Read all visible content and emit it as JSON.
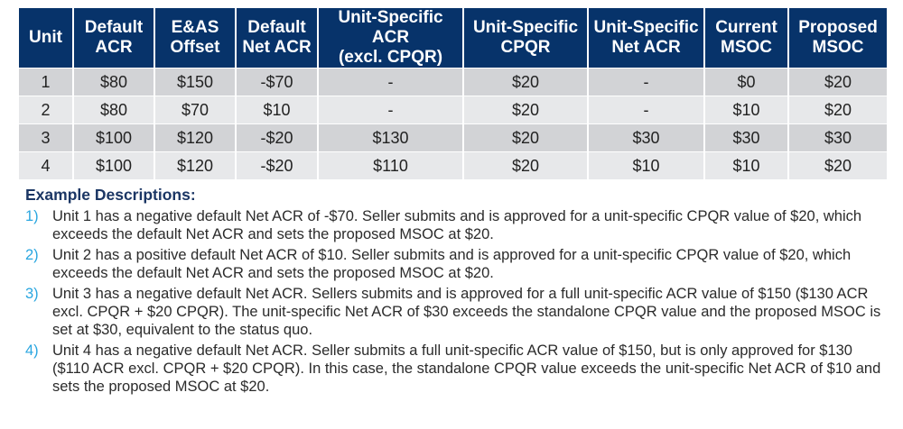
{
  "table": {
    "headers": [
      [
        "Unit"
      ],
      [
        "Default",
        "ACR"
      ],
      [
        "E&AS",
        "Offset"
      ],
      [
        "Default",
        "Net ACR"
      ],
      [
        "Unit-Specific ACR",
        "(excl. CPQR)"
      ],
      [
        "Unit-Specific",
        "CPQR"
      ],
      [
        "Unit-Specific",
        "Net ACR"
      ],
      [
        "Current",
        "MSOC"
      ],
      [
        "Proposed",
        "MSOC"
      ]
    ],
    "rows": [
      [
        "1",
        "$80",
        "$150",
        "-$70",
        "-",
        "$20",
        "-",
        "$0",
        "$20"
      ],
      [
        "2",
        "$80",
        "$70",
        "$10",
        "-",
        "$20",
        "-",
        "$10",
        "$20"
      ],
      [
        "3",
        "$100",
        "$120",
        "-$20",
        "$130",
        "$20",
        "$30",
        "$30",
        "$30"
      ],
      [
        "4",
        "$100",
        "$120",
        "-$20",
        "$110",
        "$20",
        "$10",
        "$10",
        "$20"
      ]
    ]
  },
  "descriptions": {
    "heading": "Example Descriptions:",
    "items": [
      {
        "num": "1)",
        "text": "Unit 1 has a negative default Net ACR of -$70. Seller submits and is approved for a unit-specific CPQR value of $20, which exceeds the default Net ACR and sets the proposed MSOC at $20."
      },
      {
        "num": "2)",
        "text": "Unit 2 has a positive default Net ACR of $10. Seller submits and is approved for a unit-specific CPQR value of $20, which exceeds the default Net ACR and sets the proposed MSOC at $20."
      },
      {
        "num": "3)",
        "text": "Unit 3 has a negative default Net ACR. Sellers submits and is approved for a full unit-specific ACR value of $150 ($130 ACR excl. CPQR + $20 CPQR). The unit-specific Net ACR of $30 exceeds the standalone CPQR value and the proposed MSOC is set at $30, equivalent to the status quo."
      },
      {
        "num": "4)",
        "text": "Unit 4 has a negative default Net ACR. Seller submits a full unit-specific ACR value of $150, but is only approved for $130 ($110 ACR excl. CPQR + $20 CPQR). In this case, the standalone CPQR value exceeds the unit-specific Net ACR of $10 and sets the proposed MSOC at $20."
      }
    ]
  },
  "colors": {
    "header_bg": "#07336a",
    "row_dark": "#d2d3d6",
    "row_light": "#e7e8ea",
    "number_accent": "#2aa6e0",
    "heading": "#1b3664"
  }
}
